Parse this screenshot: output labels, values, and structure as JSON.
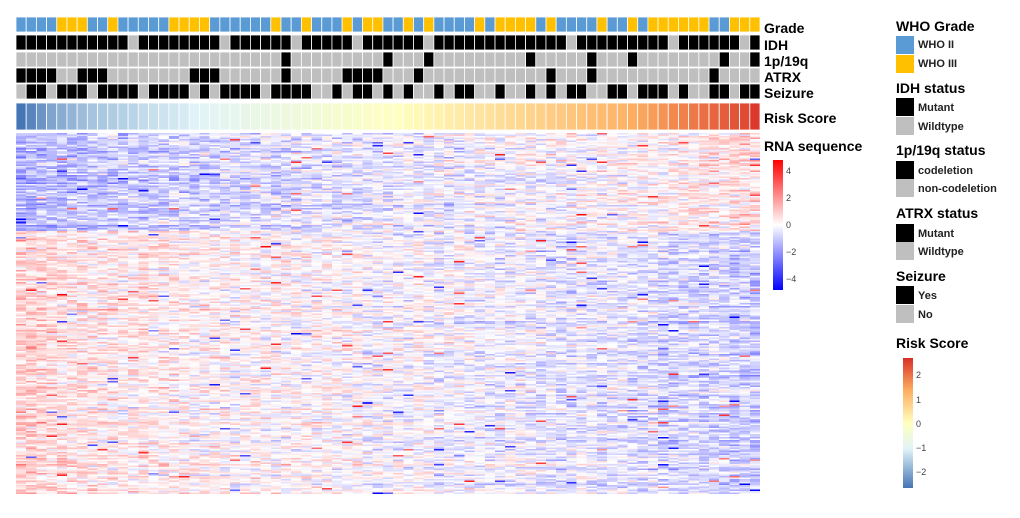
{
  "chart_data": {
    "type": "heatmap",
    "n_samples": 73,
    "annotation_rows": [
      "Grade",
      "IDH",
      "1p/19q",
      "ATRX",
      "Seizure"
    ],
    "risk_row_label": "Risk Score",
    "annotations": {
      "Grade": "BBBBAAABBABBBBBAAAABBBBBBABBABBBABAABBABABBBBABAAAABABBBBABBABAAAAAABBAAA",
      "IDH": "MMMMMMMMMMMWMMMMMMMMWMMMMMMWMMMMMWMMMMMMWMMMMMMMMMMMMMWMMMMMMMMMWMMMMMMWM",
      "1p/19q": "WWWWWWWWWWWWWWWWWWWWWWWWWWCWWWWWWWWWCWWWCWWWWWWWWWCWWWWWCWWWCWWWWWWWWCWWC",
      "ATRX": "MMMMWWMMMWWWWWWWWMMMWWWWWWMWWWWWMMMMWWWMWWWWWWWWWWWWMWWWMWWWWWWWWWWWMWWWW",
      "Seizure": "WMMWMMMWMMMMWMMMMWMWMMMMWMMMMWWMWMMWMWMWWMWMMWWMWWMWMWMMWWMMWMMMWMWWMMWMM"
    },
    "risk_scores": [
      -2.6,
      -2.4,
      -2.2,
      -2.0,
      -1.9,
      -1.8,
      -1.7,
      -1.6,
      -1.55,
      -1.5,
      -1.45,
      -1.4,
      -1.3,
      -1.25,
      -1.2,
      -1.15,
      -1.1,
      -1.0,
      -0.95,
      -0.9,
      -0.85,
      -0.8,
      -0.75,
      -0.7,
      -0.65,
      -0.6,
      -0.55,
      -0.5,
      -0.45,
      -0.4,
      -0.35,
      -0.3,
      -0.25,
      -0.2,
      -0.15,
      -0.1,
      -0.05,
      0.0,
      0.05,
      0.1,
      0.15,
      0.2,
      0.25,
      0.3,
      0.35,
      0.4,
      0.45,
      0.5,
      0.55,
      0.6,
      0.65,
      0.7,
      0.75,
      0.8,
      0.85,
      0.9,
      0.95,
      1.0,
      1.05,
      1.1,
      1.2,
      1.3,
      1.4,
      1.5,
      1.6,
      1.7,
      1.8,
      1.9,
      2.0,
      2.1,
      2.2,
      2.3,
      2.5
    ],
    "expression": {
      "n_genes": 240,
      "range": [
        -5,
        5
      ],
      "top_gene_block_rows": 65,
      "pattern": "top gene block elevated in high-risk samples; bottom gene block elevated in low-risk samples"
    },
    "expression_legend": {
      "title": "RNA sequence",
      "ticks": [
        "4",
        "2",
        "0",
        "−2",
        "−4"
      ]
    },
    "risk_legend": {
      "title": "Risk Score",
      "ticks": [
        "2",
        "1",
        "0",
        "−1",
        "−2"
      ]
    }
  },
  "legends": {
    "grade": {
      "title": "WHO Grade",
      "items": [
        "WHO II",
        "WHO III"
      ]
    },
    "idh": {
      "title": "IDH status",
      "items": [
        "Mutant",
        "Wildtype"
      ]
    },
    "codel": {
      "title": "1p/19q status",
      "items": [
        "codeletion",
        "non-codeletion"
      ]
    },
    "atrx": {
      "title": "ATRX status",
      "items": [
        "Mutant",
        "Wildtype"
      ]
    },
    "seizure": {
      "title": "Seizure",
      "items": [
        "Yes",
        "No"
      ]
    }
  },
  "colors": {
    "who_ii": "#5b9bd5",
    "who_iii": "#ffc000",
    "mutant": "#000000",
    "wildtype": "#bfbfbf",
    "expr_low": "#0000ff",
    "expr_mid": "#ffffff",
    "expr_high": "#ff0000",
    "risk_low": "#4575b4",
    "risk_midlow": "#e0f3f8",
    "risk_mid": "#ffffbf",
    "risk_midhigh": "#fdae61",
    "risk_high": "#d73027"
  }
}
